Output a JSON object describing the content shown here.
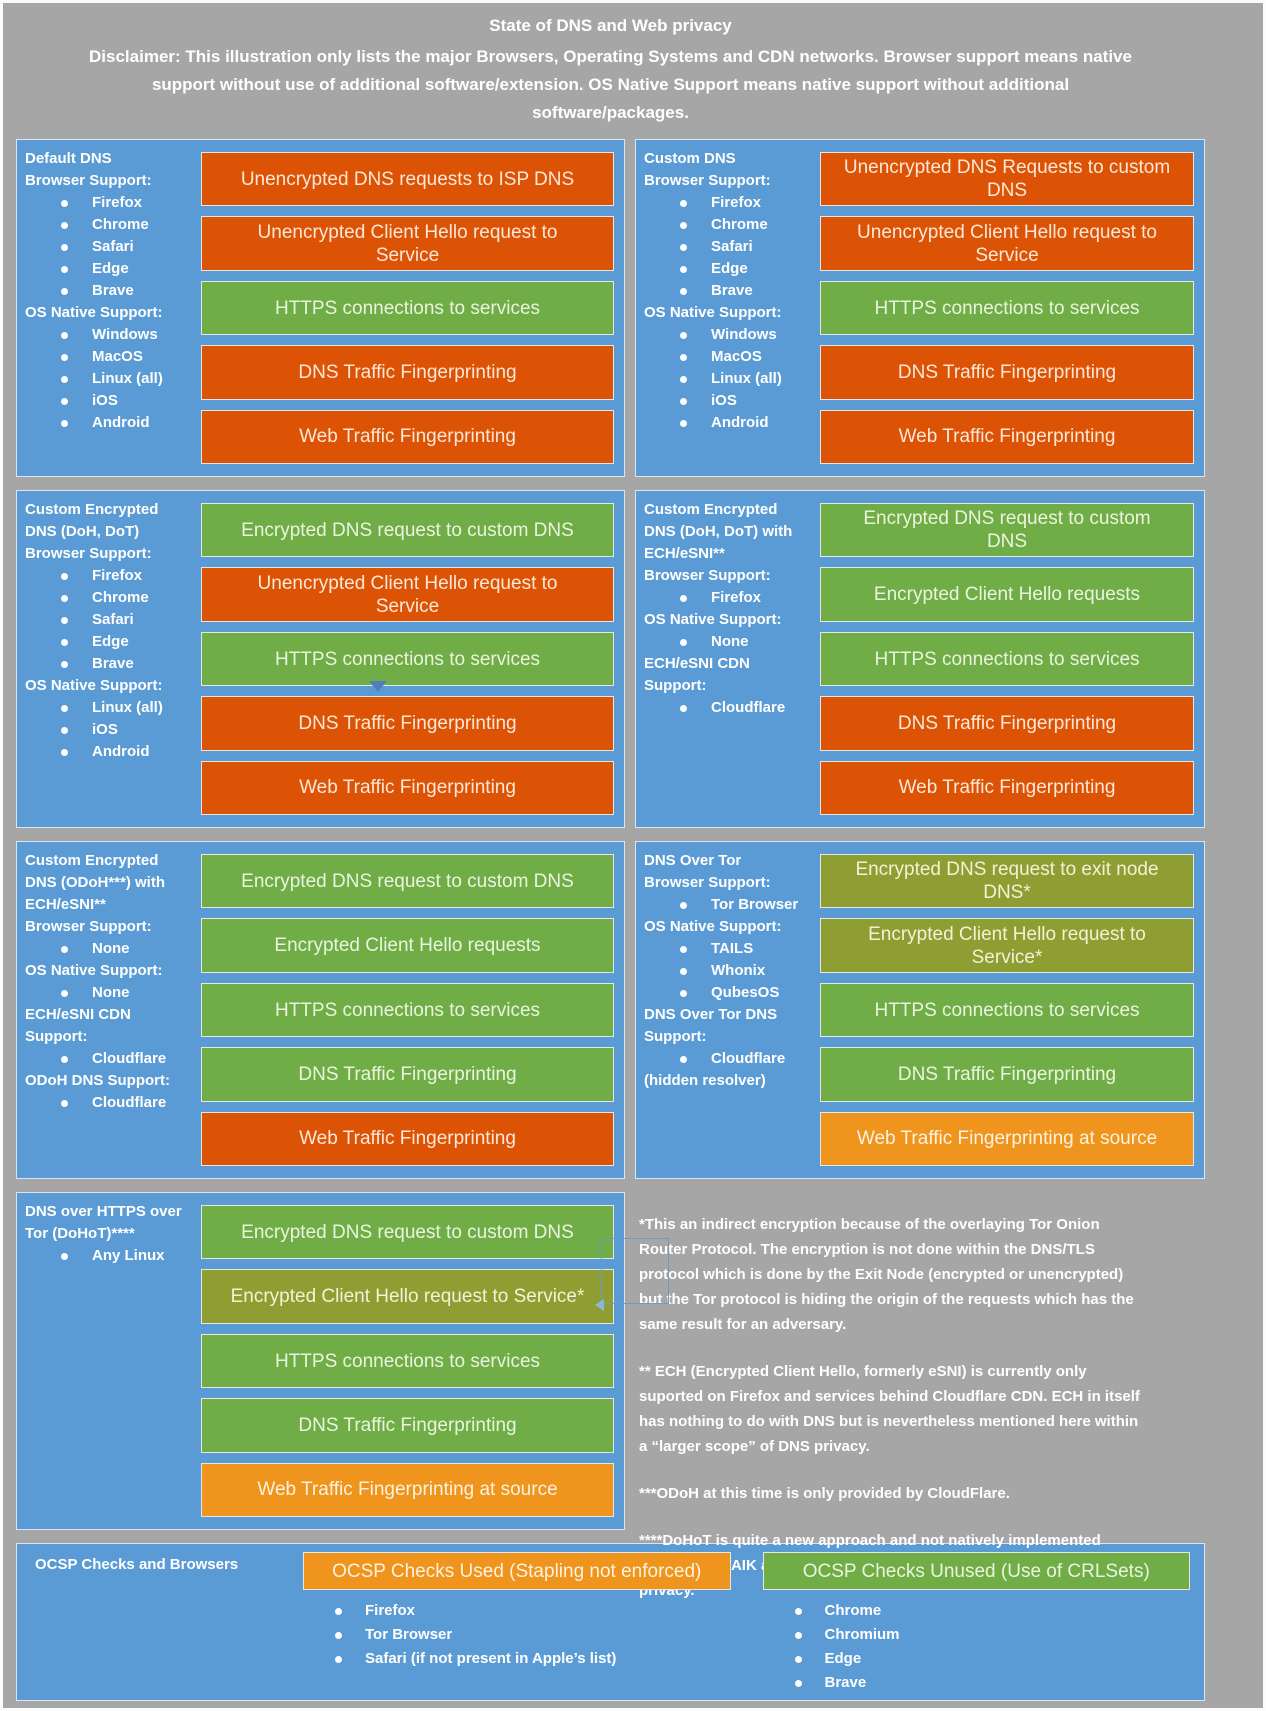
{
  "title": "State of DNS and Web privacy",
  "disclaimer": "Disclaimer: This illustration only lists the major Browsers, Operating Systems and CDN networks. Browser support means native support without use of additional software/extension. OS Native Support means native support without additional software/packages.",
  "colors": {
    "background": "#a6a6a6",
    "panel_blue": "#5b9bd5",
    "bar_orange_red": "#dd5306",
    "bar_green": "#70ad47",
    "bar_olive": "#8f9e33",
    "bar_amber": "#ef941d"
  },
  "panels": [
    {
      "title": "Default DNS",
      "sections": [
        {
          "label": "Browser Support:",
          "items": [
            "Firefox",
            "Chrome",
            "Safari",
            "Edge",
            "Brave"
          ]
        },
        {
          "label": "OS Native Support:",
          "items": [
            "Windows",
            "MacOS",
            "Linux (all)",
            "iOS",
            "Android"
          ]
        }
      ],
      "bars": [
        {
          "text": "Unencrypted DNS requests to ISP DNS",
          "color": "orange-red"
        },
        {
          "text": "Unencrypted Client Hello request to Service",
          "color": "orange-red"
        },
        {
          "text": "HTTPS connections to services",
          "color": "green"
        },
        {
          "text": "DNS Traffic Fingerprinting",
          "color": "orange-red"
        },
        {
          "text": "Web Traffic Fingerprinting",
          "color": "orange-red"
        }
      ]
    },
    {
      "title": "Custom DNS",
      "sections": [
        {
          "label": "Browser Support:",
          "items": [
            "Firefox",
            "Chrome",
            "Safari",
            "Edge",
            "Brave"
          ]
        },
        {
          "label": "OS Native Support:",
          "items": [
            "Windows",
            "MacOS",
            "Linux (all)",
            "iOS",
            "Android"
          ]
        }
      ],
      "bars": [
        {
          "text": "Unencrypted DNS Requests to custom DNS",
          "color": "orange-red"
        },
        {
          "text": "Unencrypted Client Hello request to Service",
          "color": "orange-red"
        },
        {
          "text": "HTTPS connections to services",
          "color": "green"
        },
        {
          "text": "DNS Traffic Fingerprinting",
          "color": "orange-red"
        },
        {
          "text": "Web Traffic Fingerprinting",
          "color": "orange-red"
        }
      ]
    },
    {
      "title": "Custom Encrypted DNS (DoH, DoT)",
      "sections": [
        {
          "label": "Browser Support:",
          "items": [
            "Firefox",
            "Chrome",
            "Safari",
            "Edge",
            "Brave"
          ]
        },
        {
          "label": "OS Native Support:",
          "items": [
            "Linux (all)",
            "iOS",
            "Android"
          ]
        }
      ],
      "bars": [
        {
          "text": "Encrypted DNS request to custom DNS",
          "color": "green"
        },
        {
          "text": "Unencrypted Client Hello request to Service",
          "color": "orange-red"
        },
        {
          "text": "HTTPS connections to services",
          "color": "green"
        },
        {
          "text": "DNS Traffic Fingerprinting",
          "color": "orange-red"
        },
        {
          "text": "Web Traffic Fingerprinting",
          "color": "orange-red"
        }
      ]
    },
    {
      "title": "Custom Encrypted DNS (DoH, DoT) with ECH/eSNI**",
      "sections": [
        {
          "label": "Browser Support:",
          "items": [
            "Firefox"
          ]
        },
        {
          "label": "OS Native Support:",
          "items": [
            "None"
          ]
        },
        {
          "label": "ECH/eSNI CDN Support:",
          "items": [
            "Cloudflare"
          ]
        }
      ],
      "bars": [
        {
          "text": "Encrypted DNS request to custom DNS",
          "color": "green"
        },
        {
          "text": "Encrypted Client Hello requests",
          "color": "green"
        },
        {
          "text": "HTTPS connections to services",
          "color": "green"
        },
        {
          "text": "DNS Traffic Fingerprinting",
          "color": "orange-red"
        },
        {
          "text": "Web Traffic Fingerprinting",
          "color": "orange-red"
        }
      ]
    },
    {
      "title": "Custom Encrypted DNS (ODoH***) with ECH/eSNI**",
      "sections": [
        {
          "label": "Browser Support:",
          "items": [
            "None"
          ]
        },
        {
          "label": "OS Native Support:",
          "items": [
            "None"
          ]
        },
        {
          "label": "ECH/eSNI CDN Support:",
          "items": [
            "Cloudflare"
          ]
        },
        {
          "label": "ODoH DNS Support:",
          "items": [
            "Cloudflare"
          ]
        }
      ],
      "bars": [
        {
          "text": "Encrypted DNS request to custom DNS",
          "color": "green"
        },
        {
          "text": "Encrypted Client Hello requests",
          "color": "green"
        },
        {
          "text": "HTTPS connections to services",
          "color": "green"
        },
        {
          "text": "DNS Traffic Fingerprinting",
          "color": "green"
        },
        {
          "text": "Web Traffic Fingerprinting",
          "color": "orange-red"
        }
      ]
    },
    {
      "title": "DNS Over Tor",
      "sections": [
        {
          "label": "Browser Support:",
          "items": [
            "Tor Browser"
          ]
        },
        {
          "label": "OS Native Support:",
          "items": [
            "TAILS",
            "Whonix",
            "QubesOS"
          ]
        },
        {
          "label": "DNS Over Tor DNS Support:",
          "items": [
            "Cloudflare"
          ],
          "note": "(hidden resolver)"
        }
      ],
      "bars": [
        {
          "text": "Encrypted DNS request to exit node DNS*",
          "color": "olive"
        },
        {
          "text": "Encrypted Client Hello request to Service*",
          "color": "olive"
        },
        {
          "text": "HTTPS connections to services",
          "color": "green"
        },
        {
          "text": "DNS Traffic Fingerprinting",
          "color": "green"
        },
        {
          "text": "Web Traffic Fingerprinting at source",
          "color": "amber"
        }
      ]
    },
    {
      "title": "DNS over HTTPS over Tor (DoHoT)****",
      "sections": [
        {
          "label": "",
          "items": [
            "Any Linux"
          ]
        }
      ],
      "bars": [
        {
          "text": "Encrypted DNS request to custom DNS",
          "color": "green"
        },
        {
          "text": "Encrypted Client Hello request to Service*",
          "color": "olive"
        },
        {
          "text": "HTTPS connections to services",
          "color": "green"
        },
        {
          "text": "DNS Traffic Fingerprinting",
          "color": "green"
        },
        {
          "text": "Web Traffic Fingerprinting at source",
          "color": "amber"
        }
      ]
    }
  ],
  "notes": [
    "*This an indirect encryption because of the overlaying Tor Onion Router Protocol. The encryption is not done within the DNS/TLS protocol which is done by the Exit Node (encrypted or unencrypted) but the Tor protocol is hiding the origin of the requests which has the same result for an adversary.",
    "** ECH (Encrypted Client Hello, formerly eSNI) is currently only suported on Firefox and services behind Cloudflare CDN. ECH in itself has nothing to do with DNS but is nevertheless mentioned here within a “larger scope” of DNS privacy.",
    "***ODoH at this time is only provided by CloudFlare.",
    "****DoHoT is quite a new approach and not natively implemented anywhere AFAIK and could IMHO be the actual best option for DNS privacy."
  ],
  "ocsp": {
    "title": "OCSP Checks and Browsers",
    "used": {
      "bar": "OCSP Checks Used (Stapling not enforced)",
      "color": "amber",
      "items": [
        "Firefox",
        "Tor Browser",
        "Safari (if not present in Apple’s list)"
      ]
    },
    "unused": {
      "bar": "OCSP Checks Unused (Use of CRLSets)",
      "color": "green",
      "items": [
        "Chrome",
        "Chromium",
        "Edge",
        "Brave"
      ]
    }
  }
}
